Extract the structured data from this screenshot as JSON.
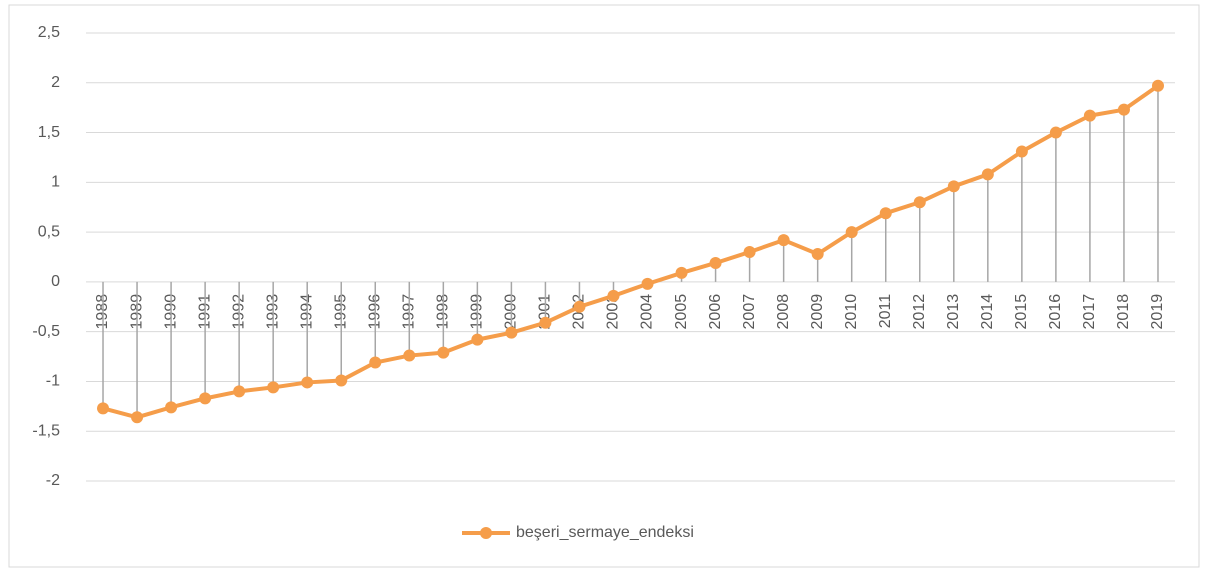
{
  "chart_data": {
    "type": "line",
    "categories": [
      "1988",
      "1989",
      "1990",
      "1991",
      "1992",
      "1993",
      "1994",
      "1995",
      "1996",
      "1997",
      "1998",
      "1999",
      "2000",
      "2001",
      "2002",
      "2003",
      "2004",
      "2005",
      "2006",
      "2007",
      "2008",
      "2009",
      "2010",
      "2011",
      "2012",
      "2013",
      "2014",
      "2015",
      "2016",
      "2017",
      "2018",
      "2019"
    ],
    "series": [
      {
        "name": "beşeri_sermaye_endeksi",
        "color": "#f59d4a",
        "values": [
          -1.27,
          -1.36,
          -1.26,
          -1.17,
          -1.1,
          -1.06,
          -1.01,
          -0.99,
          -0.81,
          -0.74,
          -0.71,
          -0.58,
          -0.51,
          -0.41,
          -0.25,
          -0.14,
          -0.02,
          0.09,
          0.19,
          0.3,
          0.42,
          0.28,
          0.5,
          0.69,
          0.8,
          0.96,
          1.08,
          1.31,
          1.5,
          1.67,
          1.73,
          1.97
        ]
      }
    ],
    "ylim": [
      -2,
      2.5
    ],
    "yticks": [
      -2,
      {
        "value": -1.5,
        "label": "-1,5"
      },
      -1,
      {
        "value": -0.5,
        "label": "-0,5"
      },
      0,
      {
        "value": 0.5,
        "label": "0,5"
      },
      1,
      {
        "value": 1.5,
        "label": "1,5"
      },
      2,
      {
        "value": 2.5,
        "label": "2,5"
      }
    ],
    "grid": true,
    "drop_lines": true,
    "legend": "bottom"
  }
}
